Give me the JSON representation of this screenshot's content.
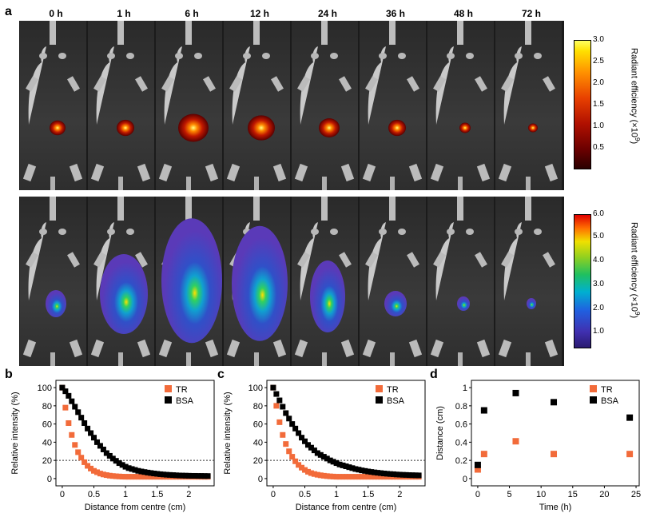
{
  "panels": {
    "a": "a",
    "b": "b",
    "c": "c",
    "d": "d"
  },
  "timepoints": [
    "0 h",
    "1 h",
    "6 h",
    "12 h",
    "24 h",
    "36 h",
    "48 h",
    "72 h"
  ],
  "colorbar_top": {
    "title": "Radiant efficiency (×10",
    "exponent": "9",
    "close": ")",
    "ticks": [
      "3.0",
      "2.5",
      "2.0",
      "1.5",
      "1.0",
      "0.5"
    ]
  },
  "colorbar_bottom": {
    "title": "Radiant efficiency (×10",
    "exponent": "9",
    "close": ")",
    "ticks": [
      "6.0",
      "5.0",
      "4.0",
      "3.0",
      "2.0",
      "1.0"
    ]
  },
  "colors": {
    "tr": "#f26b3a",
    "bsa": "#000000"
  },
  "chart_data": [
    {
      "id": "b",
      "type": "scatter",
      "xlabel": "Distance from centre (cm)",
      "ylabel": "Relative intensity (%)",
      "xlim": [
        -0.1,
        2.4
      ],
      "ylim": [
        -8,
        108
      ],
      "xticks": [
        "0",
        "0.5",
        "1",
        "1.5",
        "2"
      ],
      "yticks": [
        "0",
        "20",
        "40",
        "60",
        "80",
        "100"
      ],
      "threshold": 20,
      "legend": [
        "TR",
        "BSA"
      ],
      "series": [
        {
          "name": "TR",
          "x": [
            0,
            0.05,
            0.1,
            0.15,
            0.2,
            0.25,
            0.3,
            0.35,
            0.4,
            0.45,
            0.5,
            0.55,
            0.6,
            0.65,
            0.7,
            0.75,
            0.8,
            0.85,
            0.9,
            0.95,
            1.0,
            1.05,
            1.1,
            1.15,
            1.2,
            1.25,
            1.3,
            1.35,
            1.4,
            1.45,
            1.5,
            1.55,
            1.6,
            1.65,
            1.7,
            1.75,
            1.8,
            1.85,
            1.9,
            1.95,
            2.0,
            2.05,
            2.1,
            2.15,
            2.2,
            2.25,
            2.3
          ],
          "y": [
            100,
            78,
            61,
            48,
            37,
            29,
            23,
            18,
            14,
            11,
            8.5,
            7,
            5.5,
            4.5,
            3.8,
            3.2,
            2.8,
            2.5,
            2.3,
            2.1,
            2,
            2,
            2,
            2,
            2,
            2,
            2,
            2,
            2,
            2,
            2,
            2,
            2,
            2,
            2,
            2,
            2,
            2,
            2,
            2,
            2,
            2,
            2,
            2,
            2,
            2,
            2
          ]
        },
        {
          "name": "BSA",
          "x": [
            0,
            0.05,
            0.1,
            0.15,
            0.2,
            0.25,
            0.3,
            0.35,
            0.4,
            0.45,
            0.5,
            0.55,
            0.6,
            0.65,
            0.7,
            0.75,
            0.8,
            0.85,
            0.9,
            0.95,
            1.0,
            1.05,
            1.1,
            1.15,
            1.2,
            1.25,
            1.3,
            1.35,
            1.4,
            1.45,
            1.5,
            1.55,
            1.6,
            1.65,
            1.7,
            1.75,
            1.8,
            1.85,
            1.9,
            1.95,
            2.0,
            2.05,
            2.1,
            2.15,
            2.2,
            2.25,
            2.3
          ],
          "y": [
            100,
            96,
            91,
            85,
            79,
            73,
            67,
            61,
            55,
            50,
            45,
            40,
            36,
            32,
            28,
            25,
            22,
            19.5,
            17,
            15,
            13,
            11.5,
            10.5,
            9.5,
            8.5,
            7.8,
            7.2,
            6.6,
            6.1,
            5.6,
            5.2,
            4.8,
            4.5,
            4.2,
            4,
            3.8,
            3.6,
            3.4,
            3.3,
            3.2,
            3.1,
            3,
            3,
            2.9,
            2.9,
            2.8,
            2.8
          ]
        }
      ]
    },
    {
      "id": "c",
      "type": "scatter",
      "xlabel": "Distance from centre (cm)",
      "ylabel": "Relative intensity (%)",
      "xlim": [
        -0.1,
        2.4
      ],
      "ylim": [
        -8,
        108
      ],
      "xticks": [
        "0",
        "0.5",
        "1",
        "1.5",
        "2"
      ],
      "yticks": [
        "0",
        "20",
        "40",
        "60",
        "80",
        "100"
      ],
      "threshold": 20,
      "legend": [
        "TR",
        "BSA"
      ],
      "series": [
        {
          "name": "TR",
          "x": [
            0,
            0.05,
            0.1,
            0.15,
            0.2,
            0.25,
            0.3,
            0.35,
            0.4,
            0.45,
            0.5,
            0.55,
            0.6,
            0.65,
            0.7,
            0.75,
            0.8,
            0.85,
            0.9,
            0.95,
            1.0,
            1.05,
            1.1,
            1.15,
            1.2,
            1.25,
            1.3,
            1.35,
            1.4,
            1.45,
            1.5,
            1.55,
            1.6,
            1.65,
            1.7,
            1.75,
            1.8,
            1.85,
            1.9,
            1.95,
            2.0,
            2.05,
            2.1,
            2.15,
            2.2,
            2.25,
            2.3
          ],
          "y": [
            100,
            80,
            62,
            48,
            38,
            30,
            24,
            19,
            15,
            12,
            9.5,
            7.5,
            6,
            5,
            4.2,
            3.6,
            3.1,
            2.7,
            2.4,
            2.2,
            2,
            2,
            2,
            2,
            2,
            2,
            2,
            2,
            2,
            2,
            2,
            2,
            2,
            2,
            2,
            2,
            2,
            2,
            2,
            2,
            2,
            2,
            2,
            2,
            2,
            2,
            2
          ]
        },
        {
          "name": "BSA",
          "x": [
            0,
            0.05,
            0.1,
            0.15,
            0.2,
            0.25,
            0.3,
            0.35,
            0.4,
            0.45,
            0.5,
            0.55,
            0.6,
            0.65,
            0.7,
            0.75,
            0.8,
            0.85,
            0.9,
            0.95,
            1.0,
            1.05,
            1.1,
            1.15,
            1.2,
            1.25,
            1.3,
            1.35,
            1.4,
            1.45,
            1.5,
            1.55,
            1.6,
            1.65,
            1.7,
            1.75,
            1.8,
            1.85,
            1.9,
            1.95,
            2.0,
            2.05,
            2.1,
            2.15,
            2.2,
            2.25,
            2.3
          ],
          "y": [
            100,
            93,
            86,
            79,
            72,
            66,
            60,
            55,
            50,
            45,
            41,
            37,
            34,
            31,
            28,
            26,
            24,
            22,
            20,
            18.5,
            17,
            15.5,
            14.5,
            13.5,
            12.5,
            11.5,
            10.5,
            9.8,
            9,
            8.4,
            7.8,
            7.3,
            6.8,
            6.4,
            6,
            5.6,
            5.3,
            5,
            4.8,
            4.5,
            4.3,
            4.1,
            4,
            3.8,
            3.7,
            3.6,
            3.5
          ]
        }
      ]
    },
    {
      "id": "d",
      "type": "scatter",
      "xlabel": "Time (h)",
      "ylabel": "Distance (cm)",
      "xlim": [
        -1,
        25.5
      ],
      "ylim": [
        -0.08,
        1.08
      ],
      "xticks": [
        "0",
        "5",
        "10",
        "15",
        "20",
        "25"
      ],
      "yticks": [
        "0",
        "0.2",
        "0.4",
        "0.6",
        "0.8",
        "1"
      ],
      "legend": [
        "TR",
        "BSA"
      ],
      "series": [
        {
          "name": "TR",
          "x": [
            0,
            1,
            6,
            12,
            24
          ],
          "y": [
            0.1,
            0.27,
            0.41,
            0.27,
            0.27
          ]
        },
        {
          "name": "BSA",
          "x": [
            0,
            1,
            6,
            12,
            24
          ],
          "y": [
            0.15,
            0.75,
            0.94,
            0.84,
            0.67
          ]
        }
      ]
    }
  ]
}
